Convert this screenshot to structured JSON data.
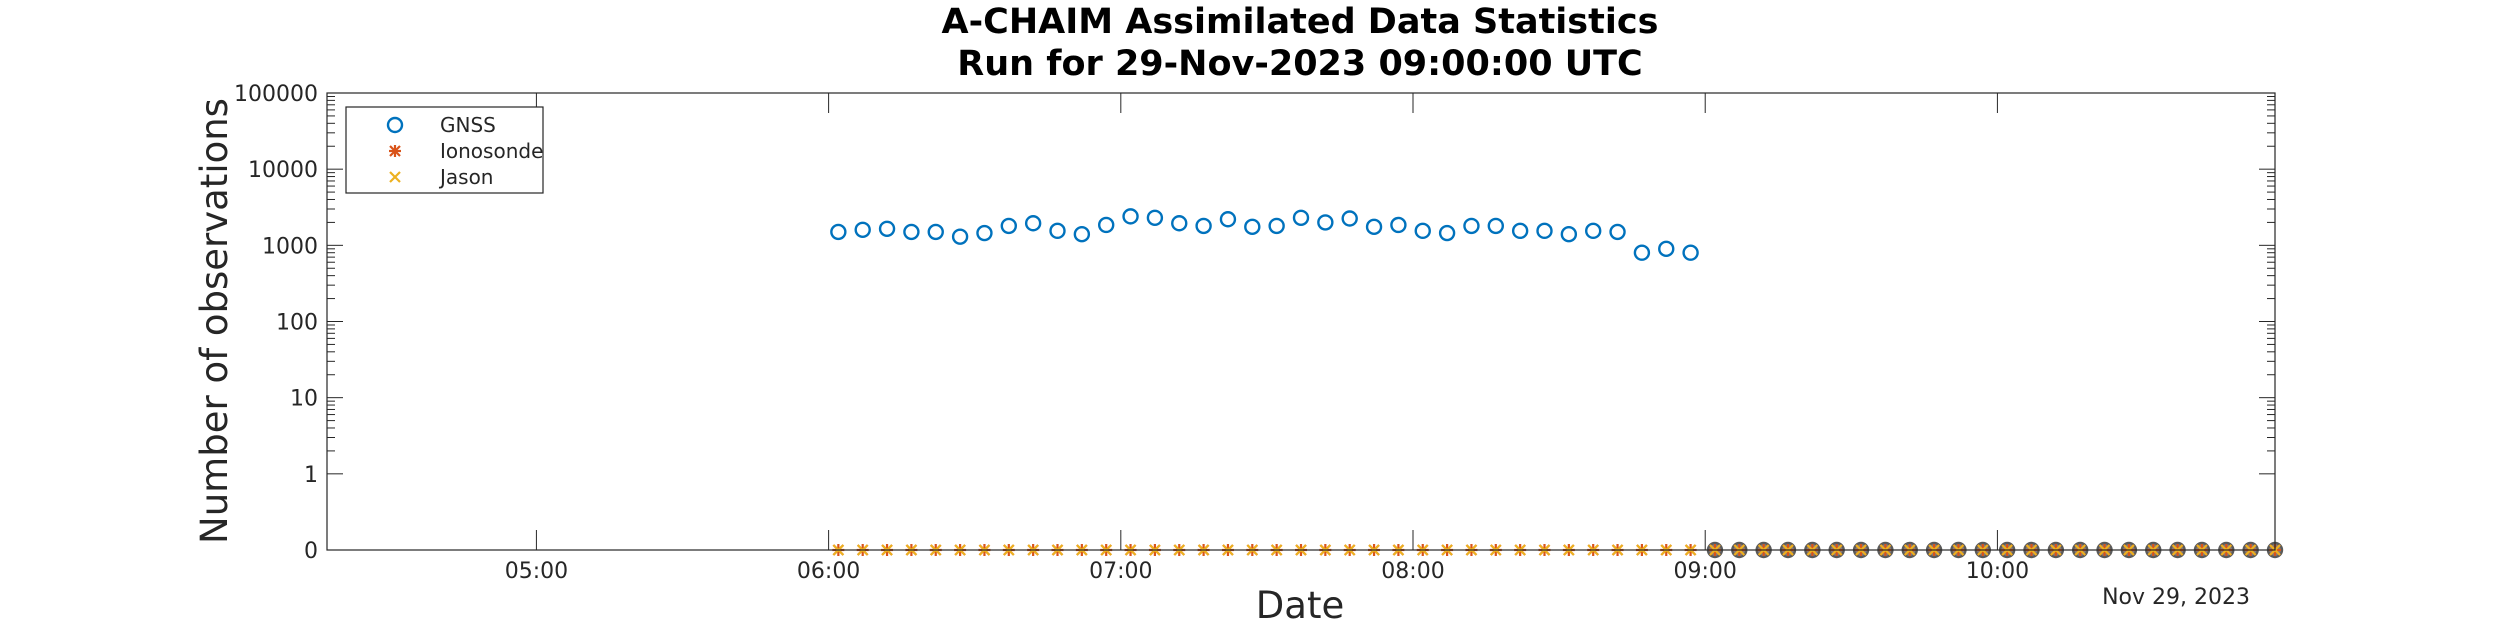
{
  "chart_data": {
    "type": "scatter",
    "title": "A-CHAIM Assimilated Data Statistics",
    "subtitle": "Run for 29-Nov-2023 09:00:00 UTC",
    "xlabel": "Date",
    "ylabel": "Number of observations",
    "date_label": "Nov 29, 2023",
    "yscale": "log",
    "ylim": [
      0,
      100000
    ],
    "xlim": [
      "04:17",
      "10:57"
    ],
    "grid": false,
    "legend_placement": "top-left",
    "y_ticks": [
      "0",
      "1",
      "10",
      "100",
      "1000",
      "10000",
      "100000"
    ],
    "x_ticks": [
      "05:00",
      "06:00",
      "07:00",
      "08:00",
      "09:00",
      "10:00"
    ],
    "x": [
      "06:02",
      "06:07",
      "06:12",
      "06:17",
      "06:22",
      "06:27",
      "06:32",
      "06:37",
      "06:42",
      "06:47",
      "06:52",
      "06:57",
      "07:02",
      "07:07",
      "07:12",
      "07:17",
      "07:22",
      "07:27",
      "07:32",
      "07:37",
      "07:42",
      "07:47",
      "07:52",
      "07:57",
      "08:02",
      "08:07",
      "08:12",
      "08:17",
      "08:22",
      "08:27",
      "08:32",
      "08:37",
      "08:42",
      "08:47",
      "08:52",
      "08:57",
      "09:02",
      "09:07",
      "09:12",
      "09:17",
      "09:22",
      "09:27",
      "09:32",
      "09:37",
      "09:42",
      "09:47",
      "09:52",
      "09:57",
      "10:02",
      "10:07",
      "10:12",
      "10:17",
      "10:22",
      "10:27",
      "10:32",
      "10:37",
      "10:42",
      "10:47",
      "10:52",
      "10:57"
    ],
    "series": [
      {
        "name": "GNSS",
        "marker": "circle",
        "color": "#0072BD",
        "values": [
          1500,
          1600,
          1650,
          1500,
          1500,
          1300,
          1450,
          1800,
          1950,
          1550,
          1400,
          1850,
          2400,
          2300,
          1950,
          1800,
          2200,
          1750,
          1800,
          2300,
          2000,
          2250,
          1750,
          1850,
          1550,
          1450,
          1800,
          1800,
          1550,
          1550,
          1400,
          1550,
          1500,
          800,
          900,
          800,
          0,
          0,
          0,
          0,
          0,
          0,
          0,
          0,
          0,
          0,
          0,
          0,
          0,
          0,
          0,
          0,
          0,
          0,
          0,
          0,
          0,
          0,
          0,
          0
        ]
      },
      {
        "name": "Ionosonde",
        "marker": "asterisk",
        "color": "#D95319",
        "values": [
          0,
          0,
          0,
          0,
          0,
          0,
          0,
          0,
          0,
          0,
          0,
          0,
          0,
          0,
          0,
          0,
          0,
          0,
          0,
          0,
          0,
          0,
          0,
          0,
          0,
          0,
          0,
          0,
          0,
          0,
          0,
          0,
          0,
          0,
          0,
          0,
          0,
          0,
          0,
          0,
          0,
          0,
          0,
          0,
          0,
          0,
          0,
          0,
          0,
          0,
          0,
          0,
          0,
          0,
          0,
          0,
          0,
          0,
          0,
          0
        ]
      },
      {
        "name": "Jason",
        "marker": "x",
        "color": "#EDB120",
        "values": [
          0,
          0,
          0,
          0,
          0,
          0,
          0,
          0,
          0,
          0,
          0,
          0,
          0,
          0,
          0,
          0,
          0,
          0,
          0,
          0,
          0,
          0,
          0,
          0,
          0,
          0,
          0,
          0,
          0,
          0,
          0,
          0,
          0,
          0,
          0,
          0,
          0,
          0,
          0,
          0,
          0,
          0,
          0,
          0,
          0,
          0,
          0,
          0,
          0,
          0,
          0,
          0,
          0,
          0,
          0,
          0,
          0,
          0,
          0,
          0
        ]
      }
    ]
  }
}
